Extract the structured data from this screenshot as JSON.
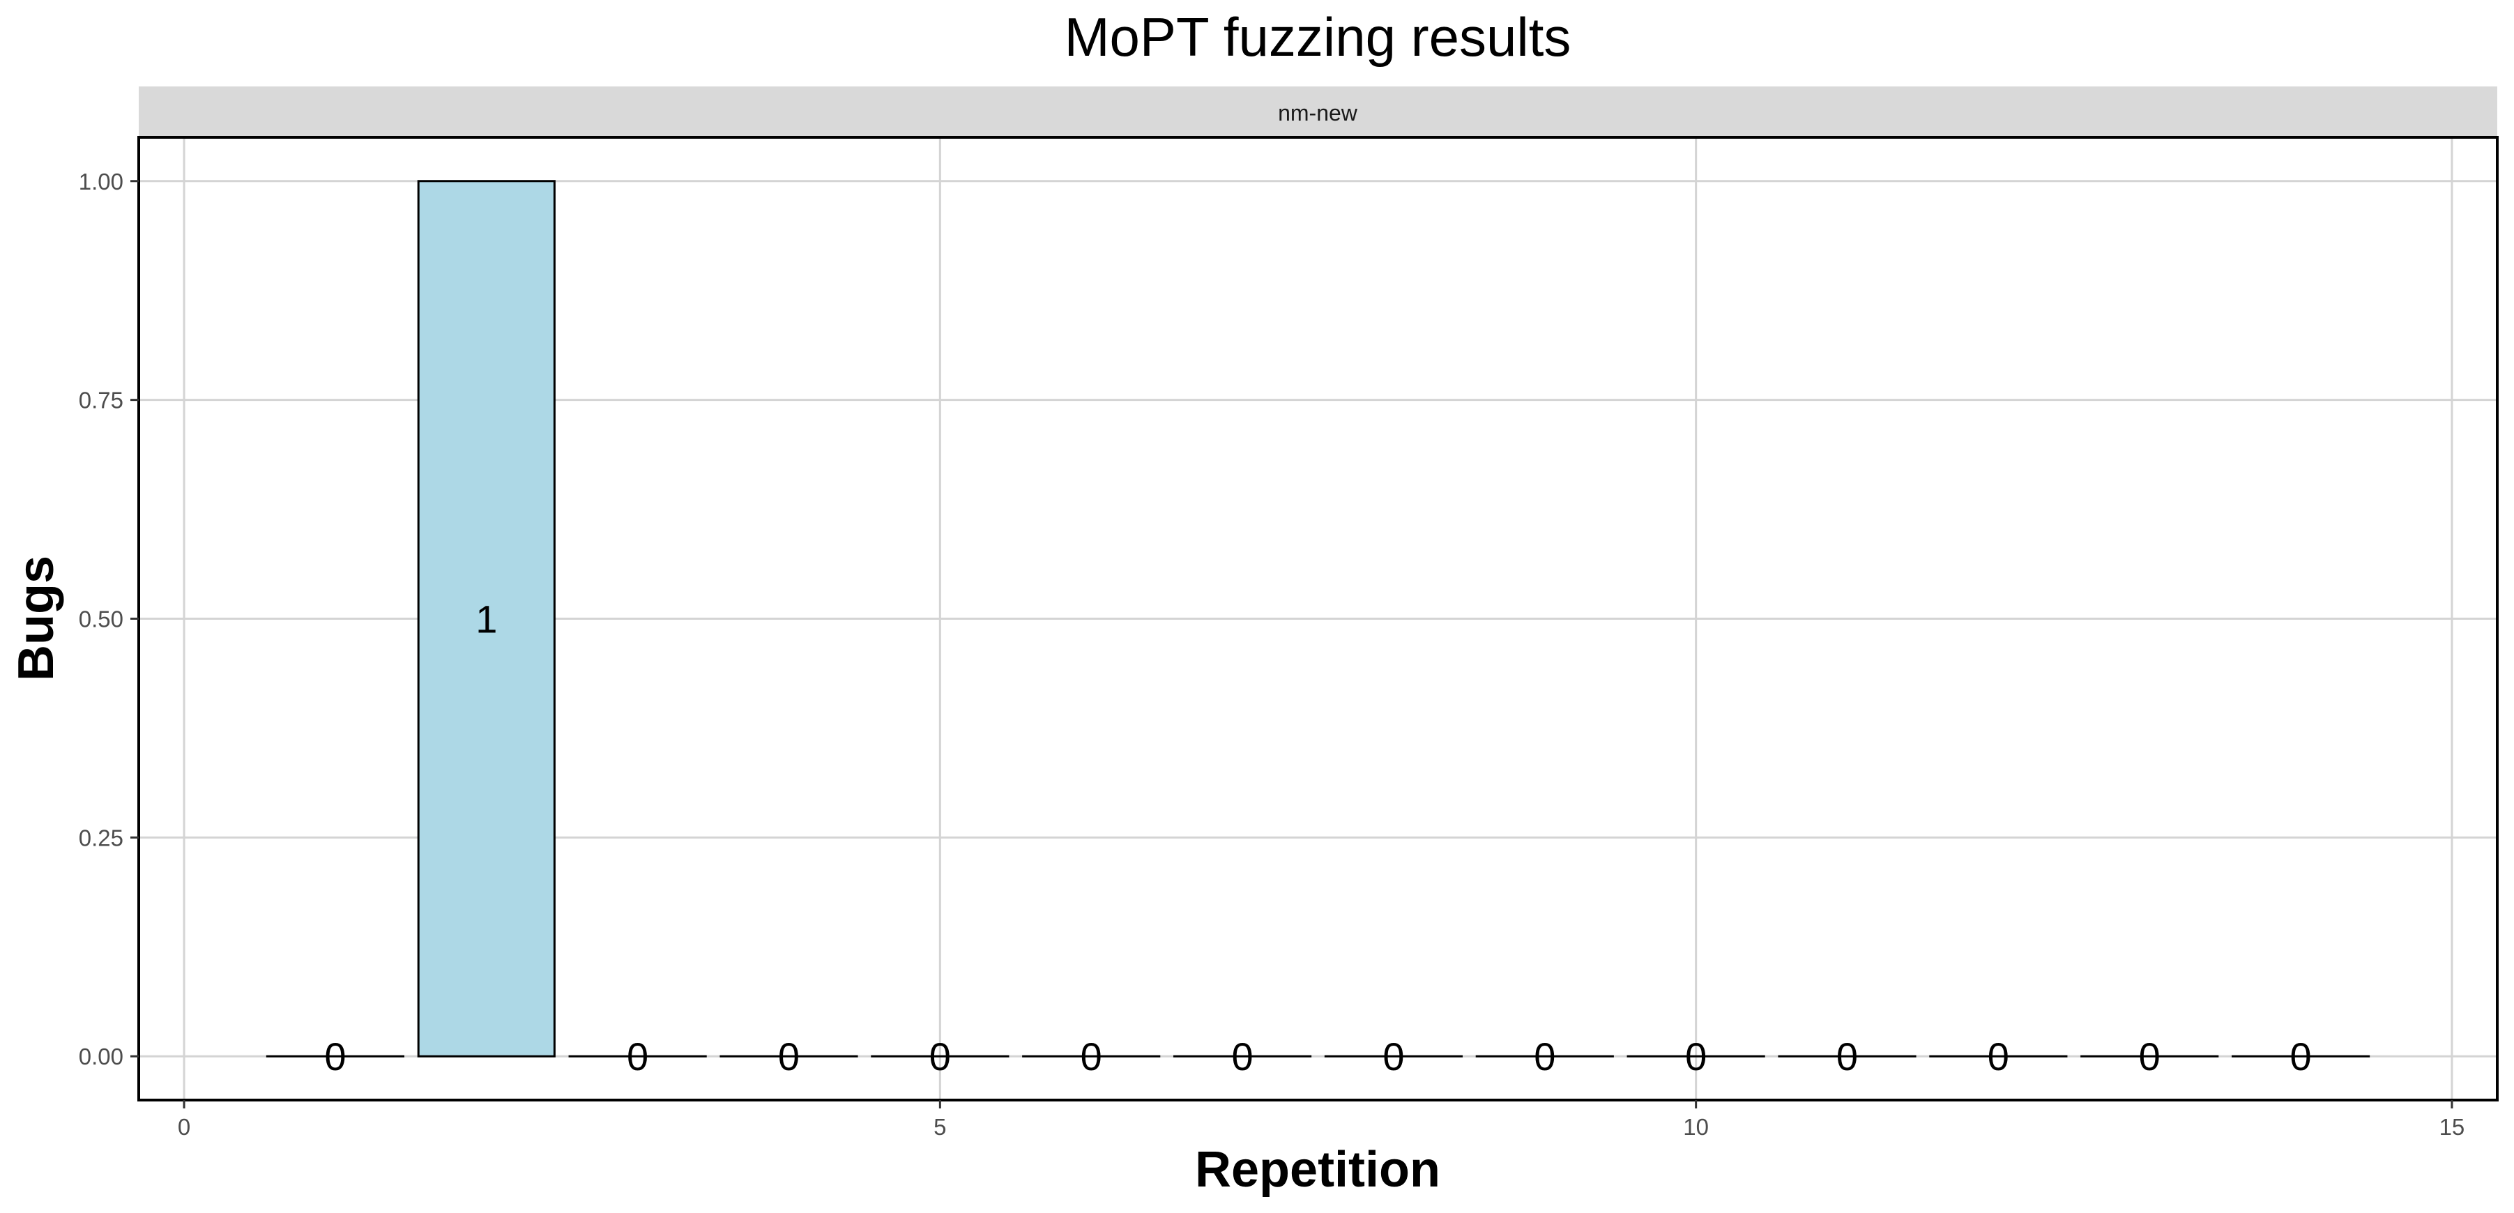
{
  "chart_data": {
    "type": "bar",
    "title": "MoPT fuzzing results",
    "facet": "nm-new",
    "xlabel": "Repetition",
    "ylabel": "Bugs",
    "xlim": [
      -0.3,
      15.3
    ],
    "ylim": [
      -0.05,
      1.05
    ],
    "x_ticks": [
      0,
      5,
      10,
      15
    ],
    "y_ticks": [
      0.0,
      0.25,
      0.5,
      0.75,
      1.0
    ],
    "x_tick_labels": [
      "0",
      "5",
      "10",
      "15"
    ],
    "y_tick_labels": [
      "0.00",
      "0.25",
      "0.50",
      "0.75",
      "1.00"
    ],
    "grid": true,
    "legend": "none",
    "x": [
      1,
      2,
      3,
      4,
      5,
      6,
      7,
      8,
      9,
      10,
      11,
      12,
      13,
      14
    ],
    "values": [
      0,
      1,
      0,
      0,
      0,
      0,
      0,
      0,
      0,
      0,
      0,
      0,
      0,
      0
    ],
    "bar_labels": [
      "0",
      "1",
      "0",
      "0",
      "0",
      "0",
      "0",
      "0",
      "0",
      "0",
      "0",
      "0",
      "0",
      "0"
    ],
    "colors": {
      "bar_fill": "#add8e6",
      "bar_stroke": "#000000",
      "grid": "#d4d4d4",
      "strip_fill": "#d9d9d9",
      "panel_border": "#000000"
    }
  }
}
